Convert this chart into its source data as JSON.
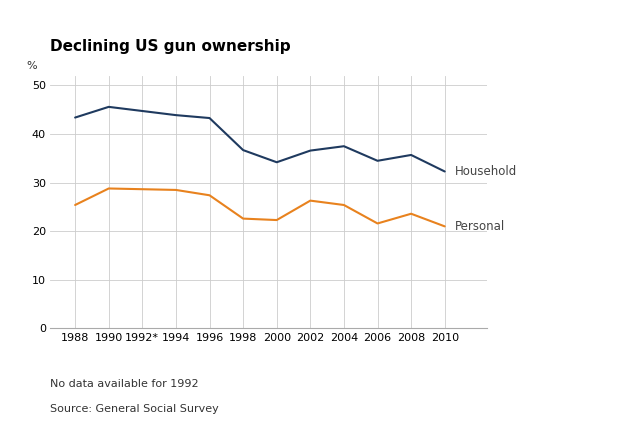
{
  "title": "Declining US gun ownership",
  "ylabel": "%",
  "household_x": [
    1988,
    1990,
    1994,
    1996,
    1998,
    2000,
    2002,
    2004,
    2006,
    2008,
    2010
  ],
  "household_y": [
    43.4,
    45.6,
    43.9,
    43.3,
    36.7,
    34.2,
    36.6,
    37.5,
    34.5,
    35.7,
    32.3
  ],
  "personal_x": [
    1988,
    1990,
    1994,
    1996,
    1998,
    2000,
    2002,
    2004,
    2006,
    2008,
    2010
  ],
  "personal_y": [
    25.4,
    28.8,
    28.5,
    27.4,
    22.6,
    22.3,
    26.3,
    25.4,
    21.6,
    23.6,
    21.0
  ],
  "household_color": "#1f3a5f",
  "personal_color": "#e8821e",
  "background_color": "#ffffff",
  "grid_color": "#cccccc",
  "xticks": [
    1988,
    1990,
    1992,
    1994,
    1996,
    1998,
    2000,
    2002,
    2004,
    2006,
    2008,
    2010
  ],
  "xtick_labels": [
    "1988",
    "1990",
    "1992*",
    "1994",
    "1996",
    "1998",
    "2000",
    "2002",
    "2004",
    "2006",
    "2008",
    "2010"
  ],
  "yticks": [
    0,
    10,
    20,
    30,
    40,
    50
  ],
  "ylim": [
    0,
    52
  ],
  "xlim": [
    1986.5,
    2012.5
  ],
  "note1": "No data available for 1992",
  "note2": "Source: General Social Survey",
  "label_household": "Household",
  "label_personal": "Personal",
  "title_fontsize": 11,
  "tick_fontsize": 8,
  "label_fontsize": 8.5,
  "note_fontsize": 8
}
